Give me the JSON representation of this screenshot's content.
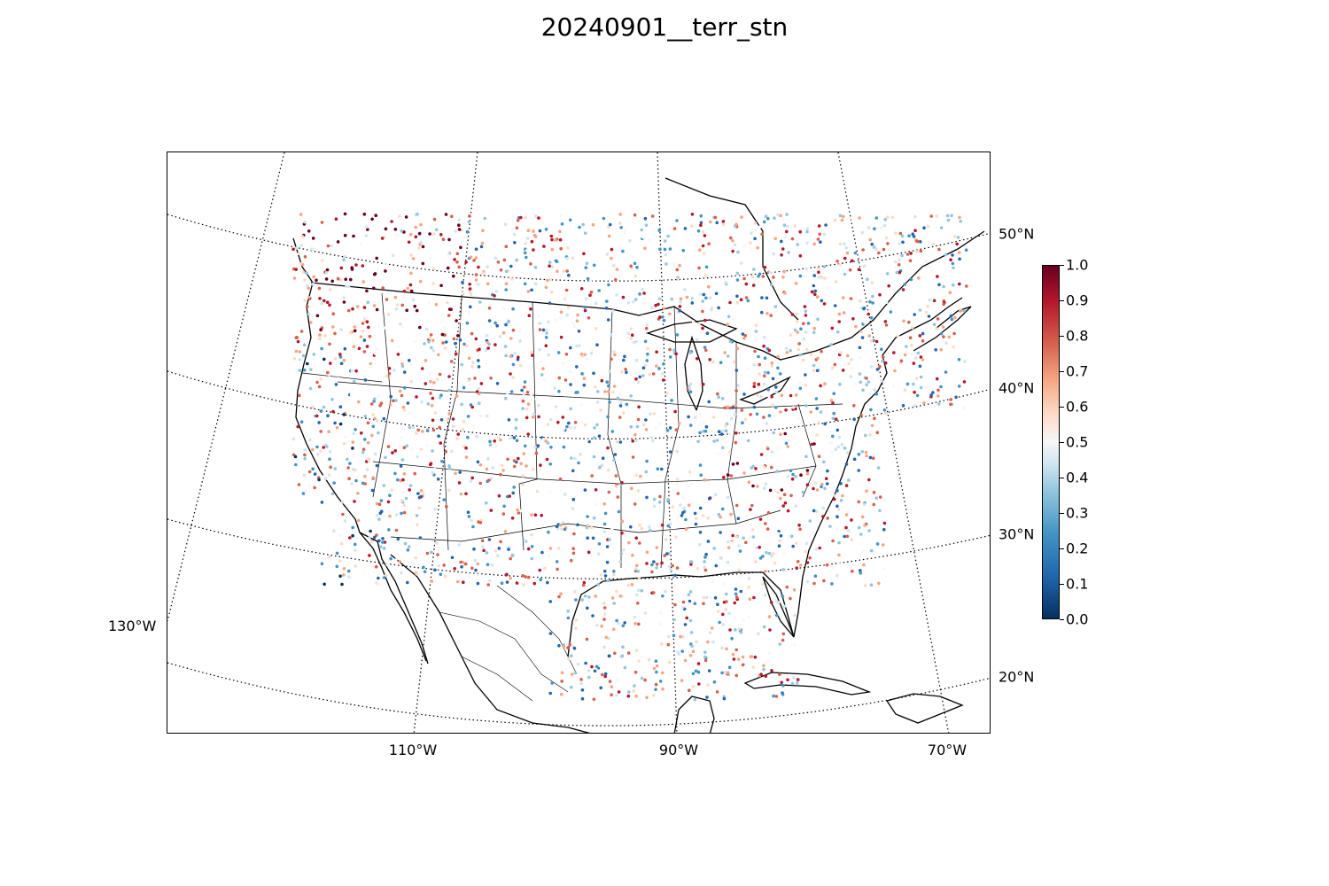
{
  "title": "20240901__terr_stn",
  "axes": {
    "lon_labels": [
      "110°W",
      "90°W",
      "70°W"
    ],
    "lon_label_outer": "130°W",
    "lat_labels": [
      "50°N",
      "40°N",
      "30°N",
      "20°N"
    ]
  },
  "colorbar": {
    "colormap": "RdBu_r",
    "min": 0.0,
    "max": 1.0,
    "ticks": [
      "0.0",
      "0.1",
      "0.2",
      "0.3",
      "0.4",
      "0.5",
      "0.6",
      "0.7",
      "0.8",
      "0.9",
      "1.0"
    ]
  },
  "colors": {
    "low": "#053061",
    "mid": "#f7f7f7",
    "high": "#67001f"
  }
}
